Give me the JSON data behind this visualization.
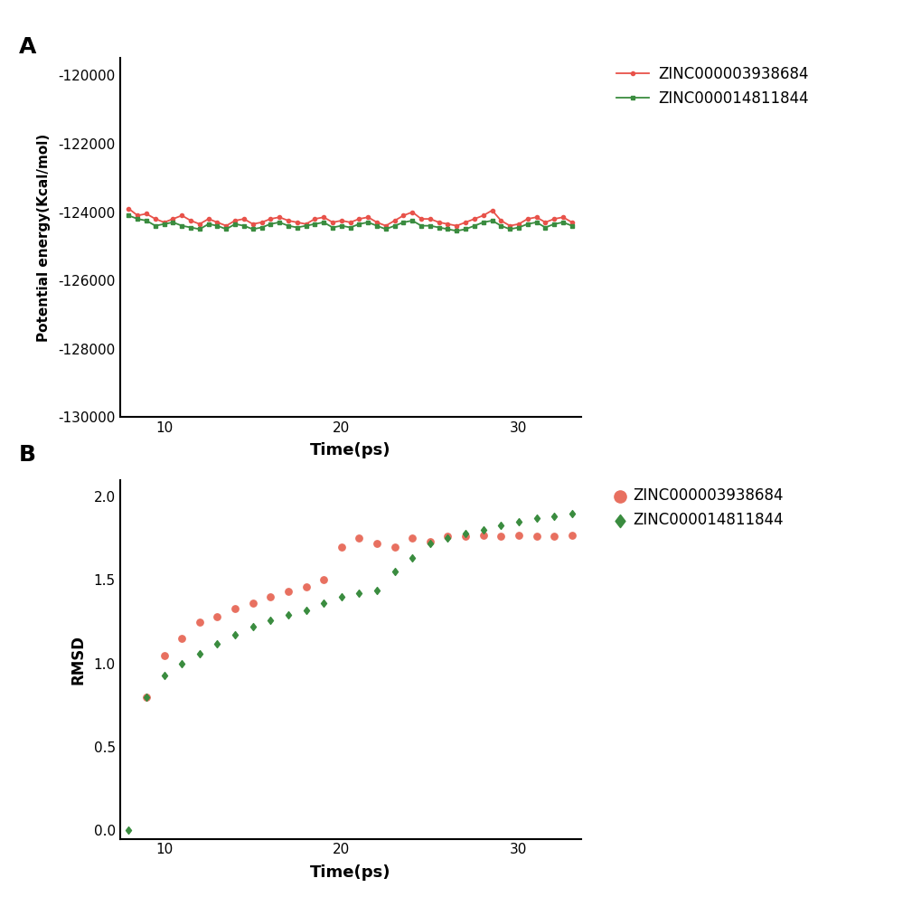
{
  "panel_a": {
    "title_label": "A",
    "xlabel": "Time(ps)",
    "ylabel": "Potential energy(Kcal/mol)",
    "ylim": [
      -130000,
      -119500
    ],
    "yticks": [
      -130000,
      -128000,
      -126000,
      -124000,
      -122000,
      -120000
    ],
    "xlim": [
      7.5,
      33.5
    ],
    "xticks": [
      10,
      20,
      30
    ],
    "red_color": "#E8524A",
    "green_color": "#3A8C3F",
    "legend1": "ZINC000003938684",
    "legend2": "ZINC000014811844",
    "red_x": [
      8.0,
      8.5,
      9.0,
      9.5,
      10.0,
      10.5,
      11.0,
      11.5,
      12.0,
      12.5,
      13.0,
      13.5,
      14.0,
      14.5,
      15.0,
      15.5,
      16.0,
      16.5,
      17.0,
      17.5,
      18.0,
      18.5,
      19.0,
      19.5,
      20.0,
      20.5,
      21.0,
      21.5,
      22.0,
      22.5,
      23.0,
      23.5,
      24.0,
      24.5,
      25.0,
      25.5,
      26.0,
      26.5,
      27.0,
      27.5,
      28.0,
      28.5,
      29.0,
      29.5,
      30.0,
      30.5,
      31.0,
      31.5,
      32.0,
      32.5,
      33.0
    ],
    "red_y": [
      -123900,
      -124100,
      -124050,
      -124200,
      -124300,
      -124200,
      -124100,
      -124250,
      -124350,
      -124200,
      -124300,
      -124400,
      -124250,
      -124200,
      -124350,
      -124300,
      -124200,
      -124150,
      -124250,
      -124300,
      -124350,
      -124200,
      -124150,
      -124300,
      -124250,
      -124300,
      -124200,
      -124150,
      -124300,
      -124400,
      -124250,
      -124100,
      -124000,
      -124200,
      -124200,
      -124300,
      -124350,
      -124400,
      -124300,
      -124200,
      -124100,
      -123950,
      -124250,
      -124400,
      -124350,
      -124200,
      -124150,
      -124300,
      -124200,
      -124150,
      -124300
    ],
    "green_x": [
      8.0,
      8.5,
      9.0,
      9.5,
      10.0,
      10.5,
      11.0,
      11.5,
      12.0,
      12.5,
      13.0,
      13.5,
      14.0,
      14.5,
      15.0,
      15.5,
      16.0,
      16.5,
      17.0,
      17.5,
      18.0,
      18.5,
      19.0,
      19.5,
      20.0,
      20.5,
      21.0,
      21.5,
      22.0,
      22.5,
      23.0,
      23.5,
      24.0,
      24.5,
      25.0,
      25.5,
      26.0,
      26.5,
      27.0,
      27.5,
      28.0,
      28.5,
      29.0,
      29.5,
      30.0,
      30.5,
      31.0,
      31.5,
      32.0,
      32.5,
      33.0
    ],
    "green_y": [
      -124100,
      -124200,
      -124250,
      -124400,
      -124350,
      -124300,
      -124400,
      -124450,
      -124500,
      -124350,
      -124400,
      -124500,
      -124350,
      -124400,
      -124500,
      -124450,
      -124350,
      -124300,
      -124400,
      -124450,
      -124400,
      -124350,
      -124300,
      -124450,
      -124400,
      -124450,
      -124350,
      -124300,
      -124400,
      -124500,
      -124400,
      -124300,
      -124250,
      -124400,
      -124400,
      -124450,
      -124500,
      -124550,
      -124500,
      -124400,
      -124300,
      -124250,
      -124400,
      -124500,
      -124450,
      -124350,
      -124300,
      -124450,
      -124350,
      -124300,
      -124400
    ]
  },
  "panel_b": {
    "title_label": "B",
    "xlabel": "Time(ps)",
    "ylabel": "RMSD",
    "ylim": [
      -0.05,
      2.1
    ],
    "yticks": [
      0.0,
      0.5,
      1.0,
      1.5,
      2.0
    ],
    "xlim": [
      7.5,
      33.5
    ],
    "xticks": [
      10,
      20,
      30
    ],
    "red_color": "#E87060",
    "green_color": "#3A8C3F",
    "legend1": "ZINC000003938684",
    "legend2": "ZINC000014811844",
    "red_x": [
      9.0,
      10.0,
      11.0,
      12.0,
      13.0,
      14.0,
      15.0,
      16.0,
      17.0,
      18.0,
      19.0,
      20.0,
      21.0,
      22.0,
      23.0,
      24.0,
      25.0,
      26.0,
      27.0,
      28.0,
      29.0,
      30.0,
      31.0,
      32.0,
      33.0
    ],
    "red_y": [
      0.8,
      1.05,
      1.15,
      1.25,
      1.28,
      1.33,
      1.36,
      1.4,
      1.43,
      1.46,
      1.5,
      1.7,
      1.75,
      1.72,
      1.7,
      1.75,
      1.73,
      1.76,
      1.76,
      1.77,
      1.76,
      1.77,
      1.76,
      1.76,
      1.77
    ],
    "green_x": [
      8.0,
      9.0,
      10.0,
      11.0,
      12.0,
      13.0,
      14.0,
      15.0,
      16.0,
      17.0,
      18.0,
      19.0,
      20.0,
      21.0,
      22.0,
      23.0,
      24.0,
      25.0,
      26.0,
      27.0,
      28.0,
      29.0,
      30.0,
      31.0,
      32.0,
      33.0
    ],
    "green_y": [
      0.0,
      0.8,
      0.93,
      1.0,
      1.06,
      1.12,
      1.17,
      1.22,
      1.26,
      1.29,
      1.32,
      1.36,
      1.4,
      1.42,
      1.44,
      1.55,
      1.63,
      1.72,
      1.75,
      1.78,
      1.8,
      1.83,
      1.85,
      1.87,
      1.88,
      1.9
    ]
  }
}
